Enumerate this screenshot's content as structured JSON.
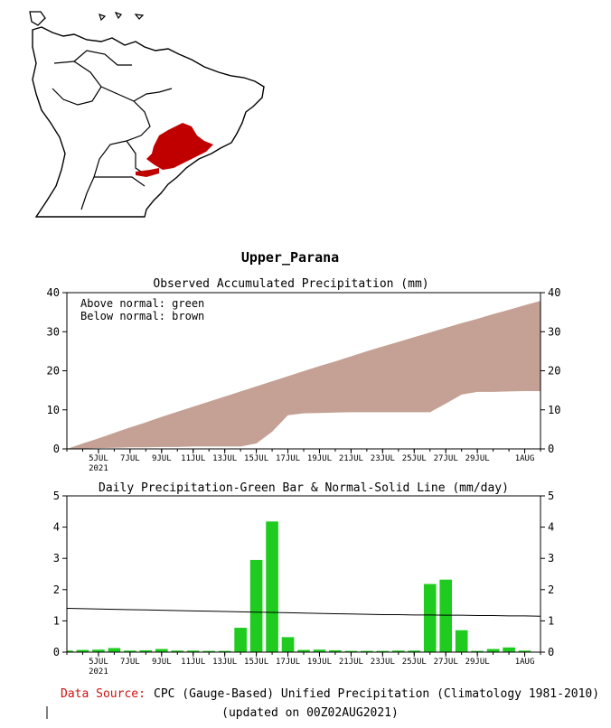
{
  "region_name": "Upper_Parana",
  "colors": {
    "above": "#1ecb1e",
    "below": "#c4a194",
    "bar": "#1ecb1e",
    "map_highlight": "#c00000",
    "source_label": "#d01010",
    "axis": "#000000"
  },
  "chart_data": [
    {
      "type": "area",
      "title": "Observed Accumulated Precipitation (mm)",
      "ylabel": "mm",
      "ylim": [
        0,
        40
      ],
      "yticks": [
        0,
        10,
        20,
        30,
        40
      ],
      "legend": [
        "Above normal: green",
        "Below normal: brown"
      ],
      "legend_position": "top-left",
      "xtick_labels": [
        "5JUL",
        "7JUL",
        "9JUL",
        "11JUL",
        "13JUL",
        "15JUL",
        "17JUL",
        "19JUL",
        "21JUL",
        "23JUL",
        "25JUL",
        "27JUL",
        "29JUL",
        "1AUG"
      ],
      "xtick_days": [
        5,
        7,
        9,
        11,
        13,
        15,
        17,
        19,
        21,
        23,
        25,
        27,
        29,
        32
      ],
      "year_label": "2021",
      "days": [
        3,
        4,
        5,
        6,
        7,
        8,
        9,
        10,
        11,
        12,
        13,
        14,
        15,
        16,
        17,
        18,
        19,
        20,
        21,
        22,
        23,
        24,
        25,
        26,
        27,
        28,
        29,
        30,
        31,
        32,
        33
      ],
      "series": [
        {
          "name": "Normal accumulated",
          "values": [
            0,
            1.4,
            2.7,
            4.1,
            5.5,
            6.8,
            8.2,
            9.5,
            10.8,
            12.1,
            13.4,
            14.7,
            16.0,
            17.3,
            18.6,
            19.9,
            21.2,
            22.4,
            23.7,
            25.0,
            26.2,
            27.4,
            28.6,
            29.8,
            31.0,
            32.2,
            33.3,
            34.5,
            35.6,
            36.8,
            37.9
          ]
        },
        {
          "name": "Observed accumulated",
          "values": [
            0,
            0.1,
            0.2,
            0.3,
            0.4,
            0.4,
            0.5,
            0.5,
            0.6,
            0.6,
            0.6,
            0.6,
            1.4,
            4.4,
            8.6,
            9.1,
            9.2,
            9.3,
            9.4,
            9.4,
            9.4,
            9.4,
            9.4,
            9.4,
            11.6,
            13.9,
            14.6,
            14.6,
            14.7,
            14.8,
            14.8
          ]
        }
      ]
    },
    {
      "type": "bar",
      "title": "Daily Precipitation-Green Bar & Normal-Solid Line (mm/day)",
      "ylabel": "mm/day",
      "ylim": [
        0,
        5
      ],
      "yticks": [
        0,
        1,
        2,
        3,
        4,
        5
      ],
      "xtick_labels": [
        "5JUL",
        "7JUL",
        "9JUL",
        "11JUL",
        "13JUL",
        "15JUL",
        "17JUL",
        "19JUL",
        "21JUL",
        "23JUL",
        "25JUL",
        "27JUL",
        "29JUL",
        "1AUG"
      ],
      "xtick_days": [
        5,
        7,
        9,
        11,
        13,
        15,
        17,
        19,
        21,
        23,
        25,
        27,
        29,
        32
      ],
      "year_label": "2021",
      "days": [
        3,
        4,
        5,
        6,
        7,
        8,
        9,
        10,
        11,
        12,
        13,
        14,
        15,
        16,
        17,
        18,
        19,
        20,
        21,
        22,
        23,
        24,
        25,
        26,
        27,
        28,
        29,
        30,
        31,
        32,
        33
      ],
      "values": [
        0.05,
        0.07,
        0.08,
        0.13,
        0.05,
        0.06,
        0.1,
        0.05,
        0.05,
        0.04,
        0.04,
        0.78,
        2.95,
        4.18,
        0.48,
        0.07,
        0.08,
        0.06,
        0.04,
        0.04,
        0.04,
        0.05,
        0.05,
        2.18,
        2.32,
        0.7,
        0.04,
        0.1,
        0.15,
        0.05,
        0.0
      ],
      "normal": [
        1.4,
        1.39,
        1.38,
        1.37,
        1.36,
        1.35,
        1.34,
        1.33,
        1.32,
        1.31,
        1.3,
        1.29,
        1.28,
        1.27,
        1.26,
        1.25,
        1.24,
        1.23,
        1.22,
        1.21,
        1.2,
        1.2,
        1.19,
        1.19,
        1.18,
        1.18,
        1.17,
        1.17,
        1.16,
        1.16,
        1.15
      ]
    }
  ],
  "footer": {
    "source_label": "Data Source:",
    "source_text": "CPC (Gauge-Based) Unified Precipitation (Climatology 1981-2010)",
    "updated": "(updated on 00Z02AUG2021)"
  }
}
